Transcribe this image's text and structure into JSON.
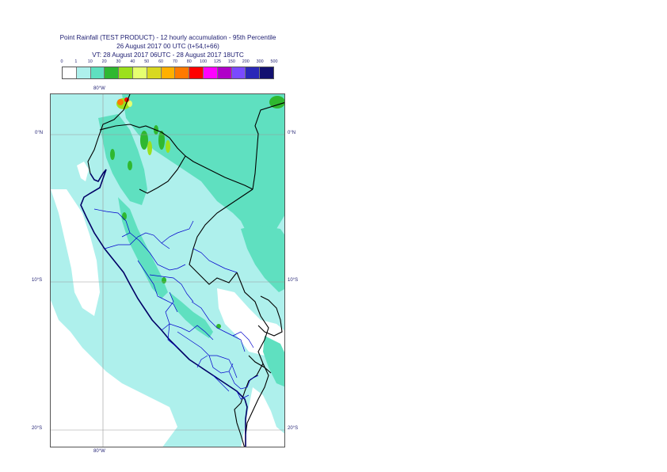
{
  "header": {
    "title_line1": "Point Rainfall (TEST PRODUCT) - 12 hourly accumulation - 95th Percentile",
    "title_line2": "26 August 2017 00 UTC (t+54,t+66)",
    "title_line3": "VT: 28 August 2017 06UTC - 28 August 2017 18UTC"
  },
  "legend": {
    "labels": [
      "0",
      "1",
      "10",
      "20",
      "30",
      "40",
      "50",
      "60",
      "70",
      "80",
      "100",
      "125",
      "150",
      "200",
      "300",
      "500"
    ],
    "colors": [
      "#ffffff",
      "#aef0ec",
      "#5fe0c0",
      "#2fb830",
      "#9ce01c",
      "#e6ff70",
      "#d8d820",
      "#ffb000",
      "#ff7a00",
      "#ff0000",
      "#ff00ff",
      "#b000c8",
      "#7a4aff",
      "#2a28b8",
      "#121070"
    ]
  },
  "map": {
    "lon_label_top": "80°W",
    "lon_label_bottom": "80°W",
    "lat_labels_left": [
      "0°N",
      "10°S",
      "20°S"
    ],
    "lat_labels_right": [
      "0°N",
      "10°S",
      "20°S"
    ],
    "colors": {
      "sea_light": "#aef0ec",
      "medium": "#5fe0c0",
      "green": "#2fb830",
      "yellow_green": "#9ce01c",
      "dry": "#ffffff",
      "border_national": "#000000",
      "border_regional": "#0000cc",
      "coastline": "#000066",
      "graticule": "#999999"
    }
  }
}
